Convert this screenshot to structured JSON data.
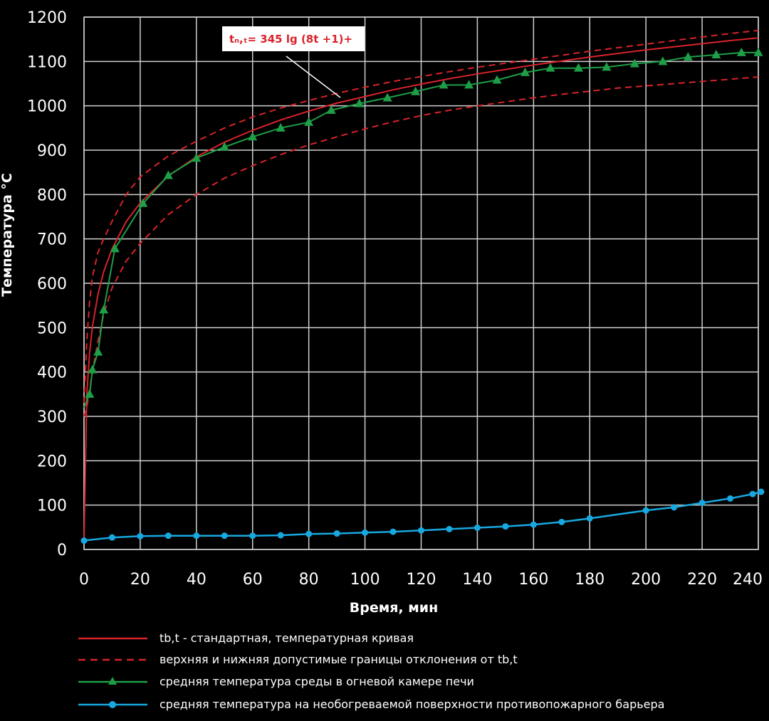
{
  "chart_data": {
    "type": "line",
    "xlabel": "Время, мин",
    "ylabel": "Температура °С",
    "xlim": [
      0,
      240
    ],
    "ylim": [
      0,
      1200
    ],
    "xticks": [
      0,
      20,
      40,
      60,
      80,
      100,
      120,
      140,
      160,
      180,
      200,
      220,
      240
    ],
    "yticks": [
      0,
      100,
      200,
      300,
      400,
      500,
      600,
      700,
      800,
      900,
      1000,
      1100,
      1200
    ],
    "grid": true,
    "legend_position": "bottom",
    "annotation": "tₙ,ₜ= 345 lg (8t +1)+",
    "series": [
      {
        "name": "tb,t - стандартная, температурная кривая",
        "color": "#d8232a",
        "style": "solid",
        "x": [
          0,
          1,
          2,
          3,
          5,
          7,
          10,
          15,
          20,
          30,
          40,
          50,
          60,
          70,
          80,
          90,
          100,
          110,
          120,
          130,
          140,
          150,
          160,
          170,
          180,
          190,
          200,
          210,
          220,
          230,
          240
        ],
        "y": [
          20,
          349,
          445,
          502,
          576,
          626,
          678,
          739,
          781,
          842,
          885,
          918,
          945,
          968,
          988,
          1006,
          1021,
          1036,
          1049,
          1061,
          1072,
          1082,
          1092,
          1101,
          1110,
          1118,
          1126,
          1133,
          1140,
          1147,
          1153
        ]
      },
      {
        "name": "верхняя и нижняя допустимые границы отклонения от tb,t",
        "color": "#d8232a",
        "style": "dashed",
        "upper": {
          "x": [
            0,
            1,
            2,
            3,
            5,
            7,
            10,
            15,
            20,
            30,
            40,
            50,
            60,
            70,
            80,
            90,
            100,
            110,
            120,
            130,
            140,
            150,
            160,
            170,
            180,
            190,
            200,
            210,
            220,
            230,
            240
          ],
          "y": [
            330,
            470,
            560,
            615,
            670,
            700,
            740,
            800,
            840,
            887,
            920,
            950,
            975,
            995,
            1012,
            1028,
            1042,
            1055,
            1066,
            1077,
            1087,
            1096,
            1105,
            1114,
            1123,
            1131,
            1139,
            1147,
            1155,
            1163,
            1170
          ]
        },
        "lower": {
          "x": [
            0,
            1,
            2,
            3,
            5,
            7,
            10,
            15,
            20,
            30,
            40,
            50,
            60,
            70,
            80,
            90,
            100,
            110,
            120,
            130,
            140,
            150,
            160,
            170,
            180,
            190,
            200,
            210,
            220,
            230,
            240
          ],
          "y": [
            300,
            320,
            360,
            400,
            470,
            530,
            590,
            650,
            690,
            755,
            800,
            837,
            865,
            890,
            912,
            930,
            948,
            964,
            978,
            990,
            1000,
            1009,
            1018,
            1026,
            1033,
            1040,
            1045,
            1050,
            1055,
            1060,
            1065
          ]
        }
      },
      {
        "name": "средняя температура среды в огневой камере печи",
        "color": "#1e9e47",
        "marker": "triangle",
        "x": [
          0,
          2,
          3,
          5,
          7,
          11,
          21,
          30,
          40,
          50,
          60,
          70,
          80,
          88,
          98,
          108,
          118,
          128,
          137,
          147,
          157,
          166,
          176,
          186,
          196,
          206,
          215,
          225,
          234,
          240
        ],
        "y": [
          320,
          350,
          405,
          445,
          540,
          678,
          780,
          843,
          882,
          907,
          930,
          950,
          963,
          990,
          1005,
          1018,
          1032,
          1047,
          1047,
          1058,
          1075,
          1085,
          1085,
          1087,
          1095,
          1100,
          1110,
          1115,
          1120,
          1120
        ]
      },
      {
        "name": "средняя температура на необогреваемой поверхности противопожарного барьера",
        "color": "#18a8e0",
        "marker": "circle",
        "x": [
          0,
          10,
          20,
          30,
          40,
          50,
          60,
          70,
          80,
          90,
          100,
          110,
          120,
          130,
          140,
          150,
          160,
          170,
          180,
          200,
          210,
          220,
          230,
          238,
          241
        ],
        "y": [
          20,
          27,
          30,
          31,
          31,
          31,
          31,
          32,
          35,
          36,
          38,
          40,
          43,
          46,
          49,
          52,
          56,
          62,
          70,
          88,
          95,
          105,
          115,
          125,
          130
        ]
      }
    ]
  }
}
